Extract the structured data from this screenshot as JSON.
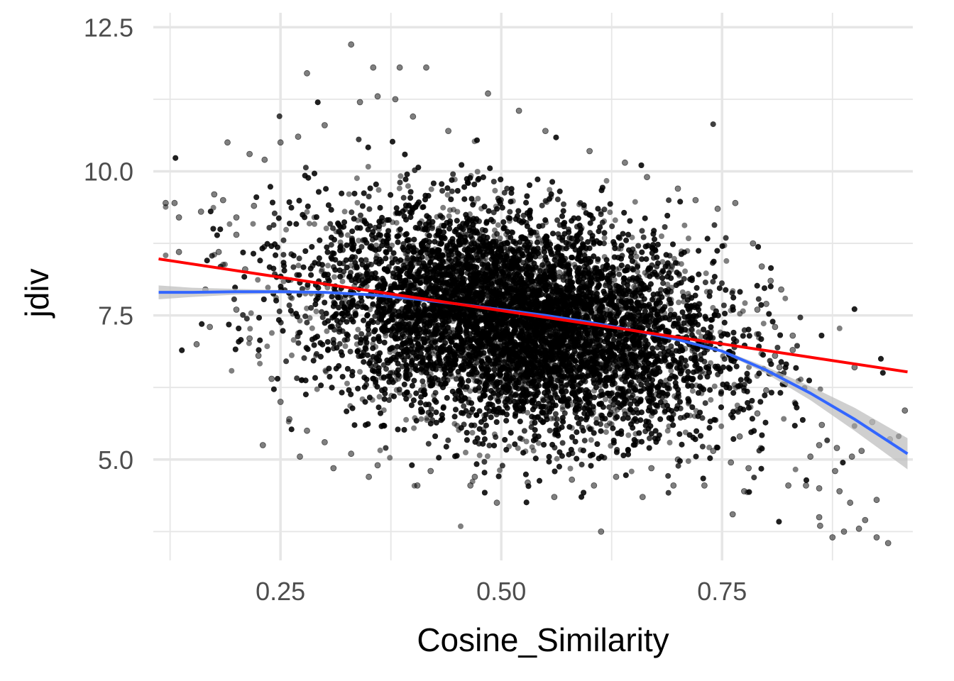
{
  "chart_data": {
    "type": "scatter",
    "title": "",
    "xlabel": "Cosine_Similarity",
    "ylabel": "jdiv",
    "xlim": [
      0.106,
      0.966
    ],
    "ylim": [
      3.25,
      12.75
    ],
    "x_ticks": [
      0.25,
      0.5,
      0.75
    ],
    "x_tick_labels": [
      "0.25",
      "0.50",
      "0.75"
    ],
    "x_minor_ticks": [
      0.125,
      0.375,
      0.625,
      0.875
    ],
    "y_ticks": [
      5.0,
      7.5,
      10.0,
      12.5
    ],
    "y_tick_labels": [
      "5.0",
      "7.5",
      "10.0",
      "12.5"
    ],
    "y_minor_ticks": [
      3.75,
      6.25,
      8.75,
      11.25
    ],
    "grid": true,
    "legend": "none",
    "series": [
      {
        "kind": "points",
        "color": "#000000",
        "opacity": 0.5,
        "note_cloud": {
          "x_mean": 0.52,
          "x_sd": 0.115,
          "y_intercept": 8.6,
          "y_slope": -2.33,
          "y_sd": 0.92,
          "n": 16000
        },
        "values": [
          [
            0.33,
            12.2
          ],
          [
            0.28,
            11.7
          ],
          [
            0.355,
            11.8
          ],
          [
            0.385,
            11.8
          ],
          [
            0.415,
            11.8
          ],
          [
            0.485,
            11.35
          ],
          [
            0.19,
            10.5
          ],
          [
            0.13,
            9.45
          ],
          [
            0.12,
            9.45
          ],
          [
            0.135,
            9.2
          ],
          [
            0.215,
            10.3
          ],
          [
            0.232,
            10.2
          ],
          [
            0.135,
            8.6
          ],
          [
            0.165,
            7.95
          ],
          [
            0.17,
            7.3
          ],
          [
            0.155,
            7.0
          ],
          [
            0.23,
            5.25
          ],
          [
            0.272,
            5.05
          ],
          [
            0.31,
            4.85
          ],
          [
            0.613,
            3.75
          ],
          [
            0.86,
            4.0
          ],
          [
            0.861,
            3.85
          ],
          [
            0.875,
            3.65
          ],
          [
            0.888,
            3.75
          ],
          [
            0.905,
            3.8
          ],
          [
            0.912,
            3.95
          ],
          [
            0.925,
            3.65
          ],
          [
            0.938,
            3.55
          ],
          [
            0.895,
            4.25
          ],
          [
            0.925,
            4.3
          ],
          [
            0.825,
            4.55
          ],
          [
            0.845,
            4.55
          ],
          [
            0.86,
            4.5
          ],
          [
            0.883,
            4.45
          ],
          [
            0.878,
            4.8
          ],
          [
            0.85,
            5.05
          ],
          [
            0.86,
            5.25
          ],
          [
            0.88,
            5.2
          ],
          [
            0.897,
            5.05
          ],
          [
            0.908,
            5.15
          ],
          [
            0.92,
            5.65
          ],
          [
            0.94,
            5.35
          ],
          [
            0.957,
            5.85
          ],
          [
            0.9,
            6.6
          ],
          [
            0.863,
            5.6
          ],
          [
            0.815,
            6.6
          ],
          [
            0.83,
            6.9
          ],
          [
            0.81,
            7.3
          ],
          [
            0.83,
            7.15
          ],
          [
            0.8,
            7.7
          ],
          [
            0.79,
            7.6
          ],
          [
            0.605,
            4.55
          ],
          [
            0.56,
            4.35
          ],
          [
            0.495,
            4.25
          ],
          [
            0.465,
            4.55
          ],
          [
            0.405,
            4.55
          ],
          [
            0.35,
            4.7
          ],
          [
            0.66,
            4.35
          ],
          [
            0.695,
            4.55
          ],
          [
            0.73,
            4.55
          ],
          [
            0.762,
            4.05
          ],
          [
            0.775,
            4.45
          ],
          [
            0.78,
            4.85
          ],
          [
            0.76,
            4.95
          ],
          [
            0.25,
            10.5
          ],
          [
            0.27,
            10.6
          ],
          [
            0.3,
            10.8
          ],
          [
            0.34,
            11.2
          ],
          [
            0.36,
            11.3
          ],
          [
            0.38,
            11.25
          ],
          [
            0.4,
            10.95
          ],
          [
            0.44,
            10.7
          ],
          [
            0.52,
            11.05
          ],
          [
            0.55,
            10.7
          ],
          [
            0.6,
            10.35
          ],
          [
            0.64,
            10.15
          ],
          [
            0.665,
            9.9
          ],
          [
            0.7,
            9.7
          ],
          [
            0.72,
            9.5
          ],
          [
            0.745,
            9.35
          ],
          [
            0.765,
            9.45
          ],
          [
            0.785,
            8.75
          ],
          [
            0.795,
            8.35
          ],
          [
            0.805,
            8.1
          ],
          [
            0.817,
            7.95
          ],
          [
            0.2,
            8.9
          ],
          [
            0.18,
            8.6
          ],
          [
            0.175,
            9.6
          ],
          [
            0.16,
            9.3
          ],
          [
            0.185,
            9.5
          ],
          [
            0.2,
            9.2
          ],
          [
            0.22,
            9.4
          ],
          [
            0.21,
            8.3
          ],
          [
            0.2,
            7.6
          ],
          [
            0.215,
            7.1
          ],
          [
            0.225,
            6.8
          ],
          [
            0.24,
            6.4
          ],
          [
            0.25,
            6.0
          ],
          [
            0.26,
            5.7
          ],
          [
            0.28,
            5.5
          ],
          [
            0.3,
            5.3
          ],
          [
            0.33,
            5.1
          ],
          [
            0.36,
            4.9
          ],
          [
            0.42,
            4.8
          ],
          [
            0.47,
            4.7
          ],
          [
            0.53,
            4.6
          ],
          [
            0.58,
            4.65
          ],
          [
            0.63,
            4.7
          ],
          [
            0.67,
            4.85
          ],
          [
            0.7,
            5.0
          ],
          [
            0.74,
            5.15
          ],
          [
            0.77,
            5.4
          ],
          [
            0.79,
            5.8
          ],
          [
            0.8,
            6.2
          ],
          [
            0.81,
            6.8
          ]
        ]
      },
      {
        "kind": "line",
        "method": "linear",
        "color": "#ff0000",
        "x": [
          0.112,
          0.96
        ],
        "y": [
          8.48,
          6.52
        ]
      },
      {
        "kind": "line",
        "method": "smooth",
        "color": "#3366ff",
        "band_color": "#bfbfbf",
        "x": [
          0.112,
          0.15,
          0.2,
          0.25,
          0.3,
          0.35,
          0.4,
          0.45,
          0.5,
          0.55,
          0.6,
          0.65,
          0.7,
          0.75,
          0.8,
          0.85,
          0.9,
          0.96
        ],
        "y": [
          7.9,
          7.9,
          7.91,
          7.91,
          7.9,
          7.86,
          7.79,
          7.7,
          7.6,
          7.5,
          7.38,
          7.24,
          7.08,
          6.88,
          6.55,
          6.15,
          5.7,
          5.1
        ],
        "band_low": [
          7.78,
          7.82,
          7.86,
          7.88,
          7.88,
          7.85,
          7.78,
          7.69,
          7.59,
          7.49,
          7.37,
          7.23,
          7.07,
          6.86,
          6.49,
          6.03,
          5.5,
          4.83
        ],
        "band_high": [
          8.02,
          7.98,
          7.96,
          7.94,
          7.92,
          7.87,
          7.8,
          7.71,
          7.61,
          7.51,
          7.39,
          7.25,
          7.09,
          6.9,
          6.61,
          6.27,
          5.9,
          5.37
        ]
      }
    ]
  }
}
